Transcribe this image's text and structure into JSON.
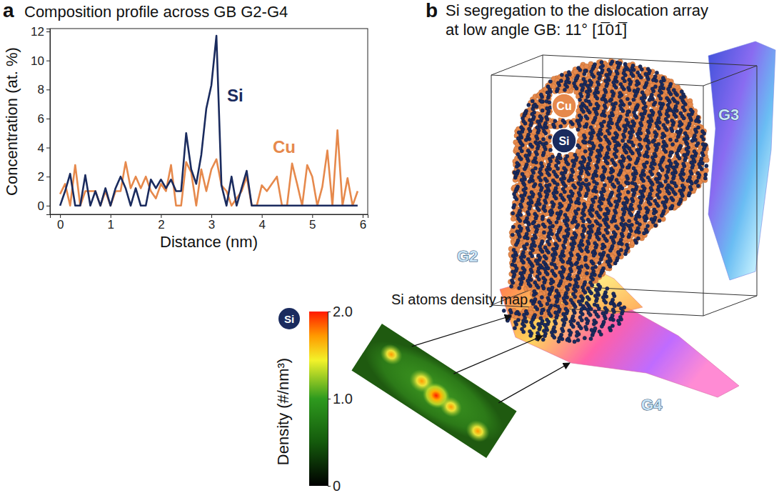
{
  "chart_data": {
    "type": "line",
    "panel_label": "a",
    "title": "Composition profile across GB G2-G4",
    "x_label": "Distance (nm)",
    "y_label": "Concentration (at. %)",
    "x": [
      0,
      0.1,
      0.2,
      0.3,
      0.4,
      0.5,
      0.6,
      0.7,
      0.8,
      0.9,
      1.0,
      1.1,
      1.2,
      1.3,
      1.4,
      1.5,
      1.6,
      1.7,
      1.8,
      1.9,
      2.0,
      2.1,
      2.2,
      2.3,
      2.4,
      2.5,
      2.6,
      2.7,
      2.8,
      2.9,
      3.0,
      3.1,
      3.2,
      3.3,
      3.4,
      3.5,
      3.6,
      3.7,
      3.8,
      3.9,
      4.0,
      4.1,
      4.2,
      4.3,
      4.4,
      4.5,
      4.6,
      4.7,
      4.8,
      4.9,
      5.0,
      5.1,
      5.2,
      5.3,
      5.4,
      5.5,
      5.6,
      5.7,
      5.8,
      5.9
    ],
    "series": [
      {
        "name": "Si",
        "color": "#1a2b5e",
        "values": [
          0,
          1.0,
          2.2,
          0,
          0,
          2.1,
          0,
          1.0,
          0,
          1.2,
          0,
          1.2,
          2.0,
          1.2,
          0,
          1.2,
          0,
          0,
          1.8,
          1.2,
          1.8,
          1.2,
          1.8,
          1.0,
          1.0,
          5.0,
          2.5,
          1.5,
          3.5,
          6.7,
          8.3,
          11.7,
          1.4,
          0,
          2.0,
          0,
          1.2,
          2.4,
          0,
          0,
          0,
          0,
          0,
          0,
          0,
          0,
          0,
          0,
          0,
          0,
          0,
          0,
          0,
          0,
          0,
          0,
          0,
          0,
          0,
          0
        ]
      },
      {
        "name": "Cu",
        "color": "#e6894c",
        "values": [
          0.8,
          1.5,
          0,
          2.8,
          0,
          1.0,
          1.0,
          1.0,
          0,
          1.0,
          0,
          1.0,
          1.0,
          3.0,
          1.2,
          2.0,
          1.2,
          2.0,
          1.0,
          0.5,
          1.5,
          1.0,
          2.8,
          0,
          0,
          3.0,
          2.3,
          0,
          2.5,
          1.0,
          2.5,
          3.2,
          1.4,
          1.0,
          0,
          0.5,
          1.0,
          2.0,
          0,
          0,
          1.4,
          1.0,
          1.5,
          2.0,
          0,
          0,
          2.9,
          1.5,
          0,
          2.8,
          2.0,
          0,
          1.3,
          3.8,
          0,
          5.2,
          0,
          1.9,
          0,
          1.0
        ]
      }
    ],
    "xlim": [
      -0.2,
      6.1
    ],
    "xticks": [
      0,
      1,
      2,
      3,
      4,
      5,
      6
    ],
    "ylim": [
      -0.6,
      12.2
    ],
    "yticks": [
      0,
      2,
      4,
      6,
      8,
      10,
      12
    ],
    "grid": false
  },
  "panel_b": {
    "panel_label": "b",
    "title": [
      "Si segregation to the dislocation array",
      "at low angle GB: 11° [1̅01̅]"
    ],
    "species": [
      {
        "name": "Cu",
        "color": "#e6894c"
      },
      {
        "name": "Si",
        "color": "#1a2b5e"
      }
    ],
    "grain_boundaries": [
      "G2",
      "G3",
      "G4"
    ],
    "density_map": {
      "title": "Si atoms density map",
      "species": "Si",
      "colorbar": {
        "label": "Density (#/nm³)",
        "range": [
          0,
          2
        ],
        "ticks": [
          {
            "value": 2,
            "label": "2.0"
          },
          {
            "value": 1,
            "label": "1.0"
          },
          0
        ]
      }
    }
  }
}
